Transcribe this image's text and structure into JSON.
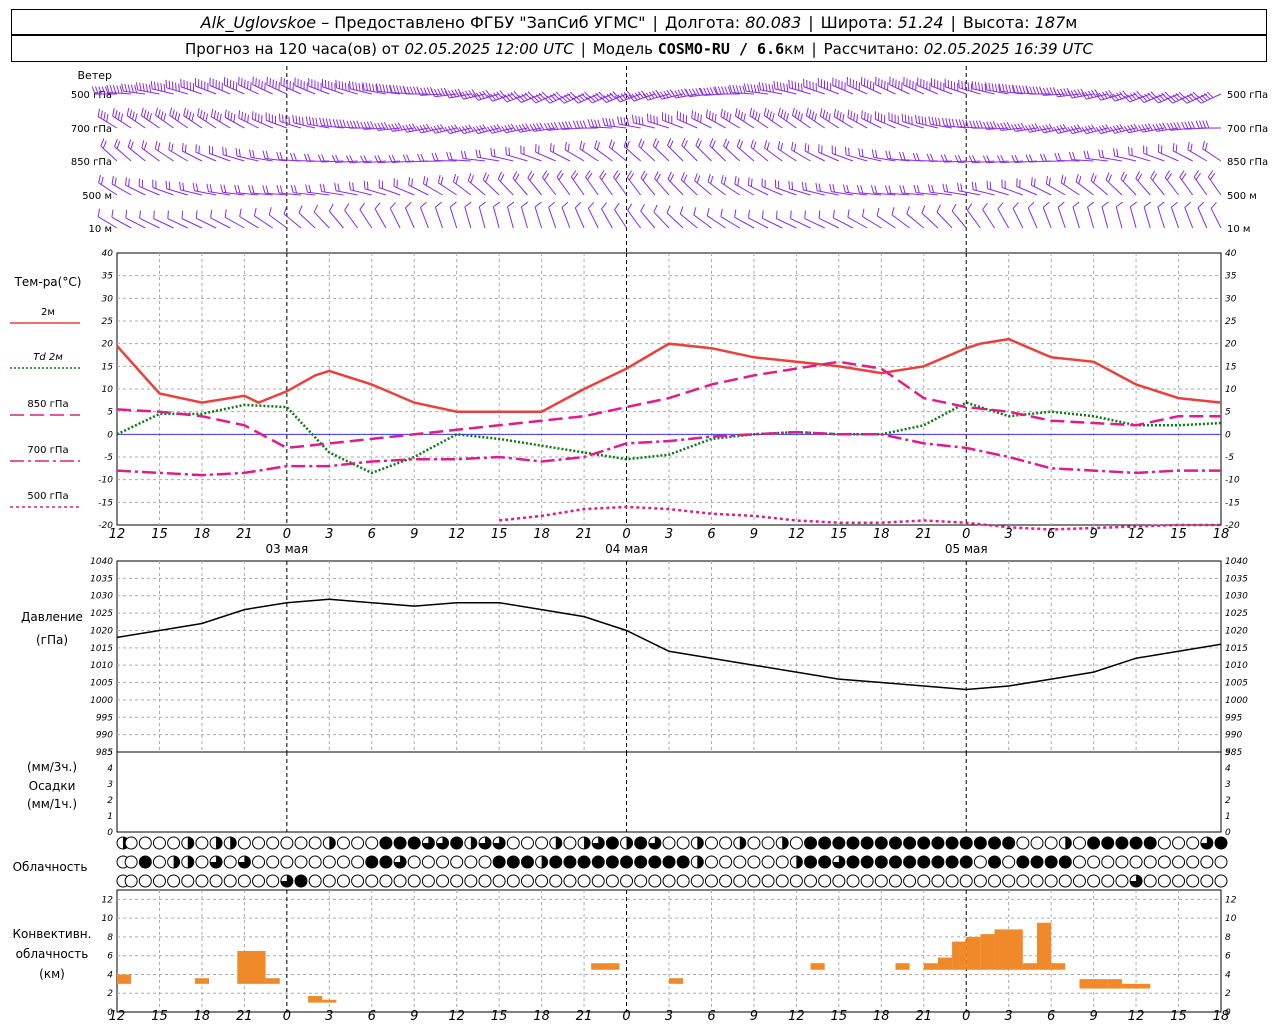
{
  "header": {
    "station": "Alk_Uglovskoe",
    "provider": "– Предоставлено ФГБУ \"ЗапСиб УГМС\"",
    "lon_label": "Долгота:",
    "lon": "80.083",
    "lat_label": "Широта:",
    "lat": "51.24",
    "alt_label": "Высота:",
    "alt": "187",
    "alt_unit": "м",
    "forecast_label": "Прогноз на 120 часа(ов) от",
    "forecast_from": "02.05.2025 12:00 UTC",
    "model_label": "Модель",
    "model": "COSMO-RU / 6.6",
    "model_unit": "км",
    "calc_label": "Рассчитано:",
    "calc_time": "02.05.2025 16:39 UTC"
  },
  "colors": {
    "t2m": "#e8413b",
    "td2m": "#0a7a12",
    "t850": "#dd1d8a",
    "t700": "#dd1d8a",
    "t500": "#dd1d8a",
    "wind": "#8a2be2",
    "convective": "#f0892a",
    "pressure": "#000000",
    "grid": "#aaaaaa"
  },
  "panels": {
    "wind_title": "Ветер",
    "wind_levels": [
      "500 гПа",
      "700 гПа",
      "850 гПа",
      "500 м",
      "10 м"
    ],
    "temp_title": "Тем-ра(°С)",
    "temp_legend": [
      {
        "key": "t2m",
        "label": "2м"
      },
      {
        "key": "td2m",
        "label": "Td 2м"
      },
      {
        "key": "t850",
        "label": "850 гПа"
      },
      {
        "key": "t700",
        "label": "700 гПа"
      },
      {
        "key": "t500",
        "label": "500 гПа"
      }
    ],
    "pressure_title": "Давление",
    "pressure_unit": "(гПа)",
    "precip_labels": [
      "(мм/3ч.)",
      "Осадки",
      "(мм/1ч.)"
    ],
    "cloud_title": "Облачность",
    "conv_labels": [
      "Конвективн.",
      "облачность",
      "(км)"
    ]
  },
  "chart_data": {
    "type": "line",
    "x_hour_labels": [
      "12",
      "15",
      "18",
      "21",
      "0",
      "3",
      "6",
      "9",
      "12",
      "15",
      "18",
      "21",
      "0",
      "3",
      "6",
      "9",
      "12",
      "15",
      "18",
      "21",
      "0",
      "3",
      "6",
      "9",
      "12",
      "15",
      "18"
    ],
    "date_labels": [
      {
        "label": "03 мая",
        "hour": 12
      },
      {
        "label": "04 мая",
        "hour": 36
      },
      {
        "label": "05 мая",
        "hour": 60
      }
    ],
    "temperature": {
      "ylim": [
        -20,
        40
      ],
      "yticks": [
        -20,
        -15,
        -10,
        -5,
        0,
        5,
        10,
        15,
        20,
        25,
        30,
        35,
        40
      ],
      "series": [
        {
          "name": "2м",
          "key": "t2m",
          "dash": "solid",
          "x": [
            0,
            3,
            6,
            9,
            10,
            12,
            14,
            15,
            18,
            21,
            24,
            27,
            30,
            33,
            36,
            39,
            42,
            45,
            48,
            51,
            54,
            57,
            60,
            61,
            63,
            66,
            69,
            72,
            75,
            78
          ],
          "y": [
            19.5,
            9,
            7,
            8.5,
            7,
            9.5,
            13,
            14,
            11,
            7,
            5,
            5,
            5,
            10,
            14.5,
            20,
            19,
            17,
            16,
            15,
            13.5,
            15,
            19,
            20,
            21,
            17,
            16,
            11,
            8,
            7
          ]
        },
        {
          "name": "Td 2м",
          "key": "td2m",
          "dash": "2,2",
          "x": [
            0,
            3,
            6,
            9,
            12,
            15,
            18,
            21,
            24,
            27,
            30,
            33,
            36,
            39,
            42,
            45,
            48,
            51,
            54,
            57,
            60,
            63,
            66,
            69,
            72,
            75,
            78
          ],
          "y": [
            0,
            4.5,
            4.5,
            6.5,
            6,
            -4,
            -8.5,
            -5,
            0,
            -1,
            -2.5,
            -4,
            -5.5,
            -4.5,
            -1,
            0,
            0.5,
            0,
            0,
            2,
            7,
            4,
            5,
            4,
            2,
            2,
            2.5
          ]
        },
        {
          "name": "850 гПа",
          "key": "t850",
          "dash": "14,6",
          "x": [
            0,
            3,
            6,
            9,
            12,
            15,
            18,
            21,
            24,
            27,
            30,
            33,
            36,
            39,
            42,
            45,
            48,
            51,
            54,
            57,
            60,
            63,
            66,
            69,
            72,
            75,
            78
          ],
          "y": [
            5.5,
            5,
            4,
            2,
            -3,
            -2,
            -1,
            0,
            1,
            2,
            3,
            4,
            6,
            8,
            11,
            13,
            14.5,
            16,
            14.5,
            8,
            6,
            5,
            3,
            2.5,
            2,
            4,
            4
          ]
        },
        {
          "name": "700 гПа",
          "key": "t700",
          "dash": "14,4,3,4",
          "x": [
            0,
            3,
            6,
            9,
            12,
            15,
            18,
            21,
            24,
            27,
            30,
            33,
            36,
            39,
            42,
            45,
            48,
            51,
            54,
            57,
            60,
            63,
            66,
            69,
            72,
            75,
            78
          ],
          "y": [
            -8,
            -8.5,
            -9,
            -8.5,
            -7,
            -7,
            -6,
            -5.5,
            -5.5,
            -5,
            -6,
            -5,
            -2,
            -1.5,
            -0.5,
            0,
            0.5,
            0,
            0,
            -2,
            -3,
            -5,
            -7.5,
            -8,
            -8.5,
            -8,
            -8
          ]
        },
        {
          "name": "500 гПа",
          "key": "t500",
          "dash": "3,3",
          "x": [
            27,
            30,
            33,
            36,
            39,
            42,
            45,
            48,
            51,
            54,
            57,
            60,
            63,
            66,
            75,
            78
          ],
          "y": [
            -19,
            -18,
            -16.5,
            -16,
            -16.5,
            -17.5,
            -18,
            -19,
            -19.5,
            -19.5,
            -19,
            -19.5,
            -20.5,
            -21,
            -20,
            -20
          ]
        }
      ]
    },
    "pressure": {
      "ylim": [
        985,
        1040
      ],
      "yticks": [
        985,
        990,
        995,
        1000,
        1005,
        1010,
        1015,
        1020,
        1025,
        1030,
        1035,
        1040
      ],
      "x": [
        0,
        3,
        6,
        9,
        12,
        15,
        18,
        21,
        24,
        27,
        30,
        33,
        36,
        39,
        42,
        45,
        48,
        51,
        54,
        57,
        60,
        63,
        66,
        69,
        72,
        75,
        78
      ],
      "y": [
        1018,
        1020,
        1022,
        1026,
        1028,
        1029,
        1028,
        1027,
        1028,
        1028,
        1026,
        1024,
        1020,
        1014,
        1012,
        1010,
        1008,
        1006,
        1005,
        1004,
        1003,
        1004,
        1006,
        1008,
        1012,
        1014,
        1016
      ]
    },
    "precipitation": {
      "ylim": [
        0,
        5
      ],
      "yticks": [
        0,
        1,
        2,
        3,
        4,
        5
      ],
      "values": []
    },
    "cloudiness": {
      "note": "cloud cover symbols, 3 rows (high / middle / low), per hour, value in octas 0-8",
      "rows": [
        [
          4,
          0,
          0,
          0,
          0,
          4,
          0,
          4,
          4,
          0,
          0,
          0,
          0,
          0,
          0,
          4,
          0,
          0,
          0,
          8,
          8,
          8,
          6,
          6,
          8,
          4,
          6,
          6,
          0,
          0,
          0,
          4,
          0,
          4,
          6,
          8,
          4,
          8,
          6,
          0,
          0,
          4,
          0,
          0,
          4,
          0,
          0,
          4,
          0,
          8,
          8,
          8,
          8,
          8,
          8,
          8,
          8,
          8,
          8,
          8,
          8,
          8,
          8,
          8,
          0,
          0,
          0,
          4,
          0,
          8,
          8,
          8,
          8,
          8,
          0,
          0,
          0,
          6,
          8,
          0
        ],
        [
          0,
          0,
          8,
          0,
          4,
          4,
          0,
          6,
          0,
          6,
          0,
          0,
          0,
          0,
          0,
          0,
          0,
          0,
          8,
          8,
          6,
          0,
          0,
          0,
          0,
          0,
          0,
          8,
          8,
          8,
          4,
          8,
          8,
          8,
          8,
          8,
          8,
          8,
          8,
          8,
          8,
          4,
          0,
          0,
          0,
          0,
          0,
          0,
          4,
          8,
          8,
          6,
          8,
          8,
          8,
          8,
          8,
          8,
          8,
          8,
          8,
          0,
          8,
          0,
          8,
          8,
          8,
          8,
          0,
          0,
          0,
          0,
          0,
          0,
          0,
          0,
          0,
          0,
          0,
          0
        ],
        [
          0,
          0,
          0,
          0,
          0,
          0,
          0,
          0,
          0,
          0,
          0,
          0,
          6,
          8,
          0,
          0,
          0,
          0,
          0,
          0,
          0,
          0,
          0,
          0,
          0,
          0,
          0,
          0,
          0,
          0,
          0,
          0,
          0,
          0,
          0,
          0,
          0,
          0,
          0,
          0,
          0,
          0,
          0,
          0,
          0,
          0,
          0,
          0,
          0,
          0,
          0,
          0,
          0,
          0,
          0,
          0,
          0,
          0,
          0,
          0,
          0,
          0,
          0,
          0,
          0,
          0,
          0,
          0,
          0,
          0,
          0,
          0,
          6,
          0,
          0,
          0,
          0,
          0,
          0,
          0
        ]
      ]
    },
    "convective": {
      "ylim": [
        0,
        13
      ],
      "yticks": [
        0,
        2,
        4,
        6,
        8,
        10,
        12
      ],
      "bars": [
        {
          "x": 0.5,
          "w": 1,
          "bottom": 3,
          "top": 4
        },
        {
          "x": 6,
          "w": 1,
          "bottom": 3,
          "top": 3.6
        },
        {
          "x": 9,
          "w": 2,
          "bottom": 3,
          "top": 6.5
        },
        {
          "x": 11,
          "w": 1,
          "bottom": 3,
          "top": 3.6
        },
        {
          "x": 14,
          "w": 1,
          "bottom": 1,
          "top": 1.7
        },
        {
          "x": 15,
          "w": 1,
          "bottom": 1,
          "top": 1.3
        },
        {
          "x": 34,
          "w": 2,
          "bottom": 4.5,
          "top": 5.2
        },
        {
          "x": 39.5,
          "w": 1,
          "bottom": 3,
          "top": 3.6
        },
        {
          "x": 49.5,
          "w": 1,
          "bottom": 4.5,
          "top": 5.2
        },
        {
          "x": 55.5,
          "w": 1,
          "bottom": 4.5,
          "top": 5.2
        },
        {
          "x": 57.5,
          "w": 1,
          "bottom": 4.5,
          "top": 5.2
        },
        {
          "x": 58.5,
          "w": 1,
          "bottom": 4.5,
          "top": 5.8
        },
        {
          "x": 59.5,
          "w": 1,
          "bottom": 4.5,
          "top": 7.5
        },
        {
          "x": 60.5,
          "w": 1,
          "bottom": 4.5,
          "top": 8.0
        },
        {
          "x": 61.5,
          "w": 1,
          "bottom": 4.5,
          "top": 8.3
        },
        {
          "x": 62.5,
          "w": 2,
          "bottom": 4.5,
          "top": 8.8
        },
        {
          "x": 64.5,
          "w": 1,
          "bottom": 4.5,
          "top": 5.2
        },
        {
          "x": 65.5,
          "w": 1,
          "bottom": 4.5,
          "top": 9.5
        },
        {
          "x": 66.5,
          "w": 1,
          "bottom": 4.5,
          "top": 5.2
        },
        {
          "x": 68.5,
          "w": 2,
          "bottom": 2.5,
          "top": 3.5
        },
        {
          "x": 70.5,
          "w": 1,
          "bottom": 2.5,
          "top": 3.5
        },
        {
          "x": 71.5,
          "w": 2,
          "bottom": 2.5,
          "top": 3.0
        }
      ]
    },
    "wind": {
      "note": "wind barbs at 5 levels per hour; direction (deg) and speed (m/s) approximated",
      "levels": [
        "500 гПа",
        "700 гПа",
        "850 гПа",
        "500 м",
        "10 м"
      ],
      "dir": [
        270,
        280,
        290,
        300,
        320
      ],
      "speed": [
        25,
        18,
        12,
        9,
        6
      ]
    }
  }
}
